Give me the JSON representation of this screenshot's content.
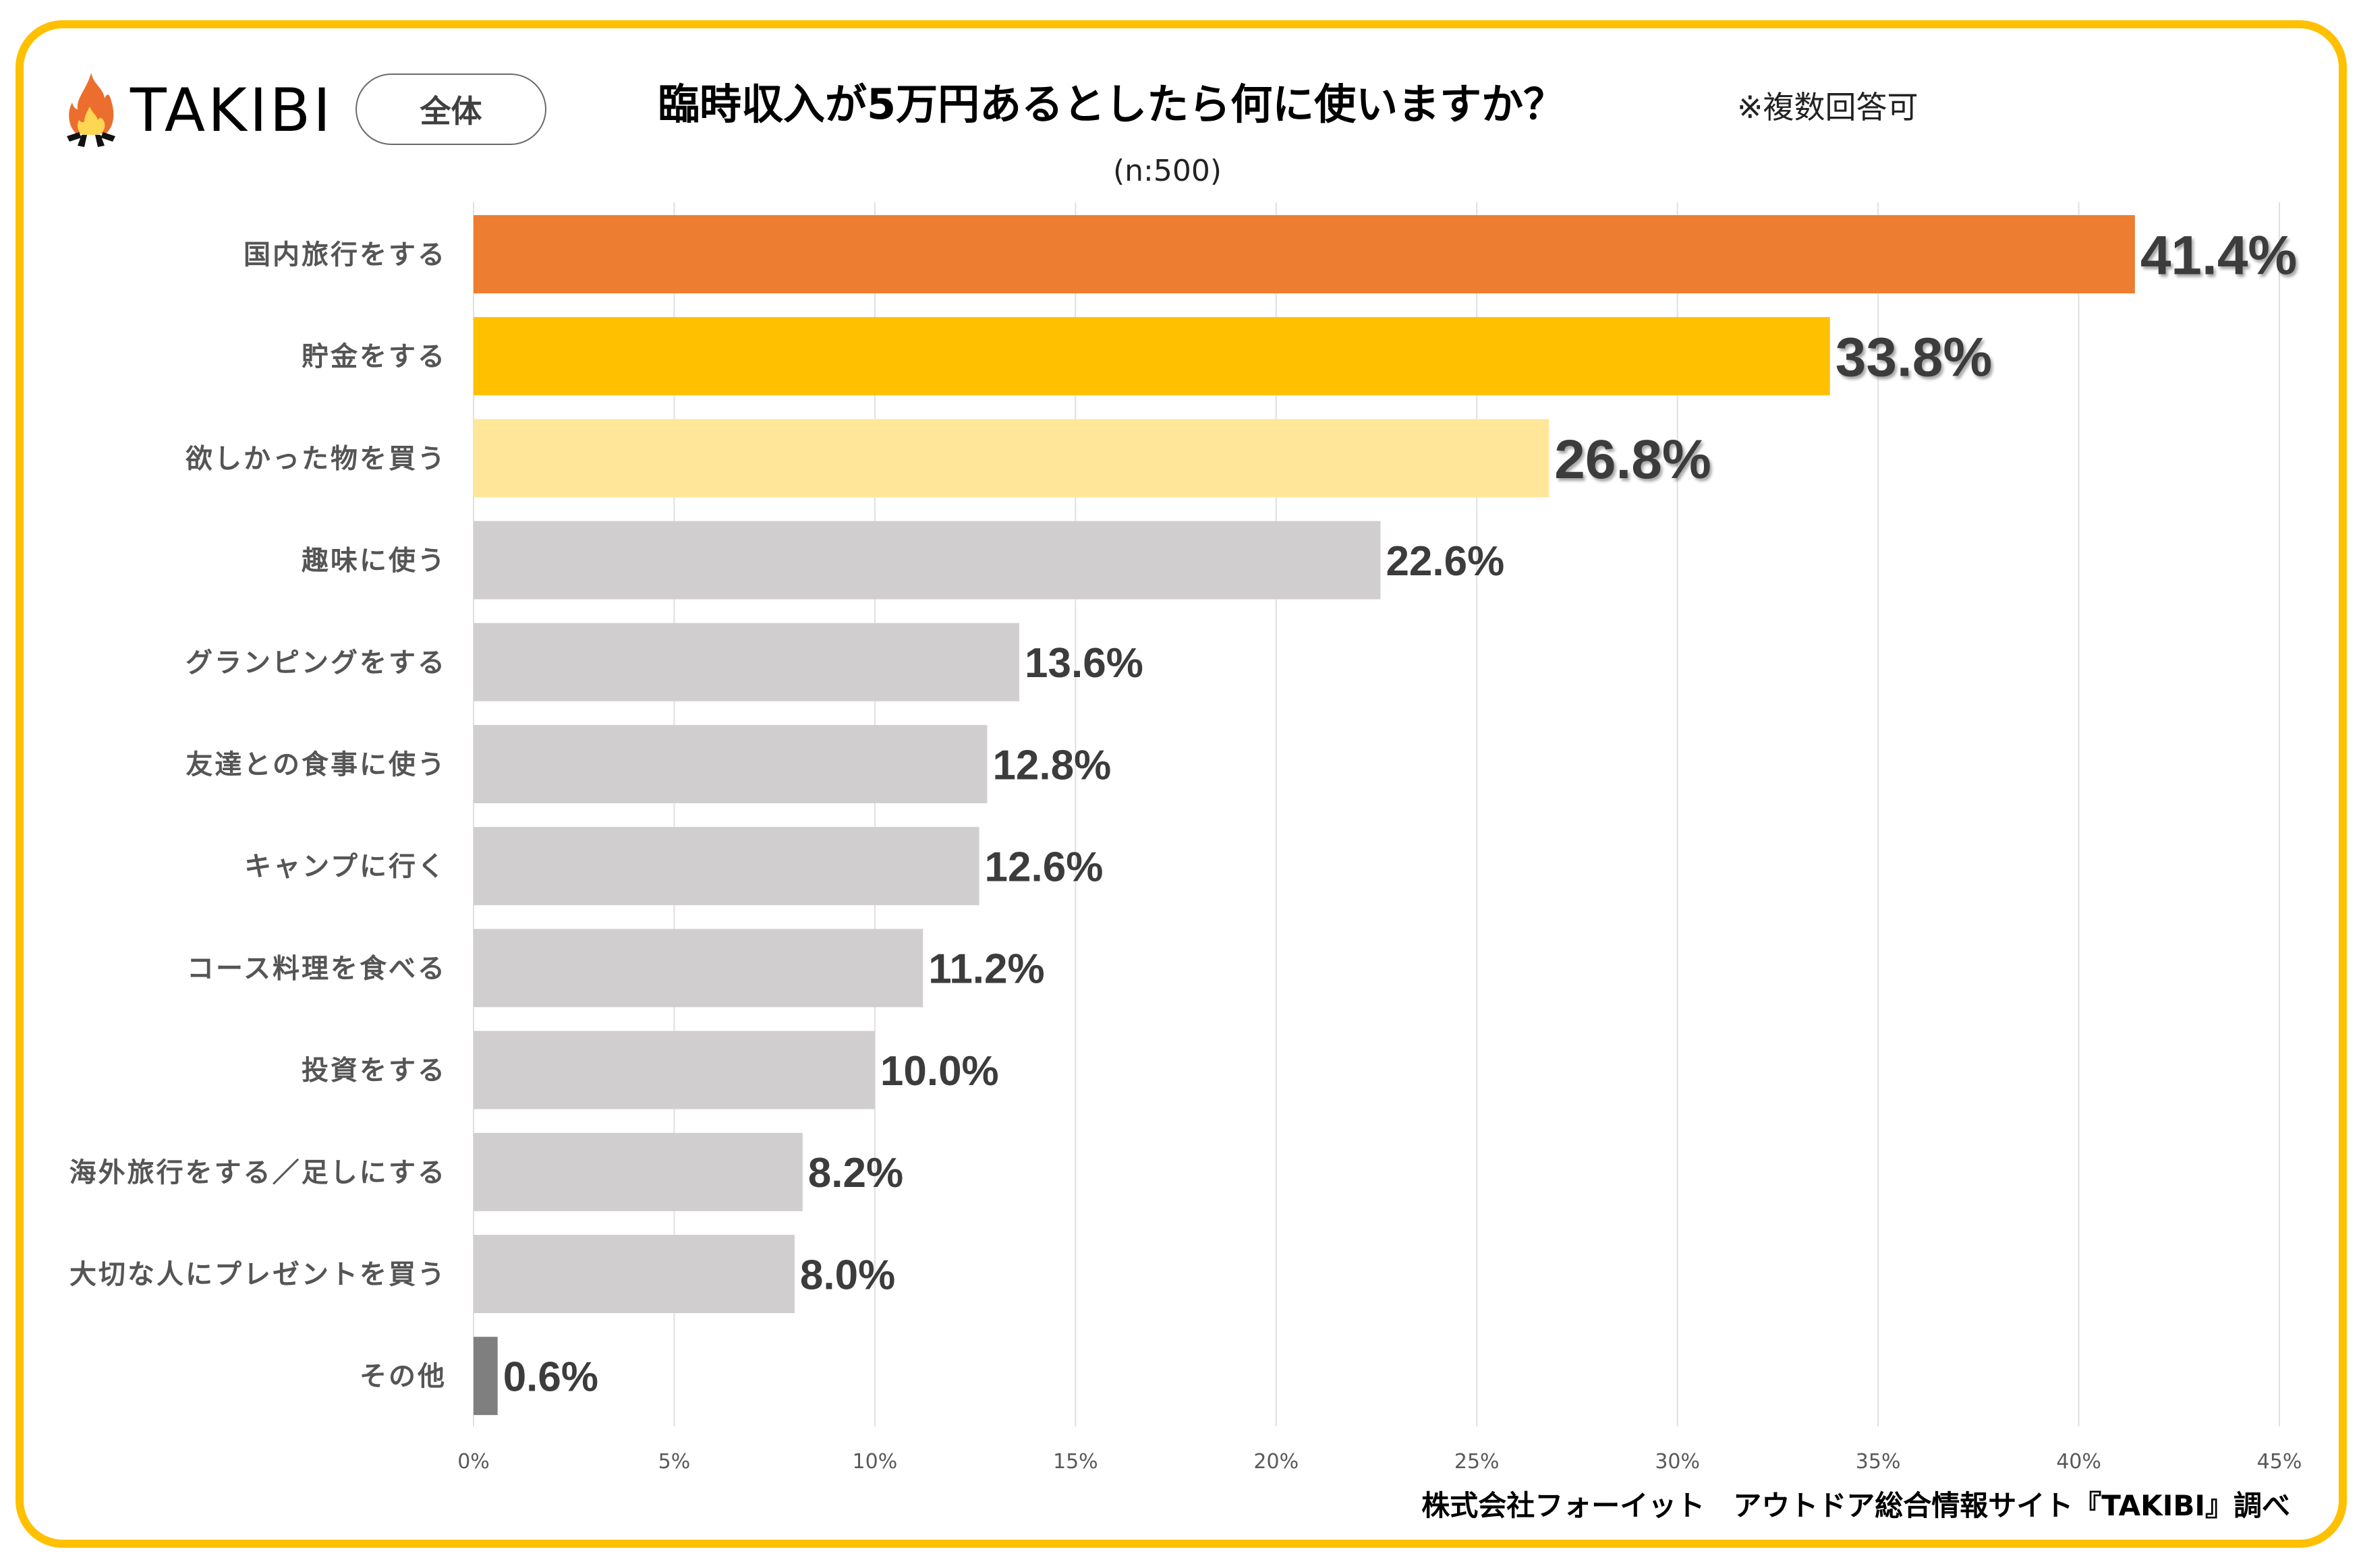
{
  "brand": {
    "name": "TAKIBI",
    "icon": "campfire-icon"
  },
  "filter": {
    "label": "全体"
  },
  "header": {
    "title": "臨時収入が5万円あるとしたら何に使いますか？",
    "note": "※複数回答可",
    "sample": "(n:500)"
  },
  "footer": {
    "credit": "株式会社フォーイット　アウトドア総合情報サイト『TAKIBI』調べ"
  },
  "colors": {
    "border": "#FFC000",
    "rank1": "#ED7D31",
    "rank2": "#FFC000",
    "rank3": "#FFE699",
    "other": "#D0CECE",
    "misc": "#7F7F7F",
    "rank1_label": "#ED7D31",
    "label": "#3C3C3C"
  },
  "chart_data": {
    "type": "bar",
    "orientation": "horizontal",
    "title": "臨時収入が5万円あるとしたら何に使いますか？",
    "subtitle": "(n:500)",
    "xlabel": "",
    "ylabel": "",
    "unit": "%",
    "xlim": [
      0,
      45
    ],
    "xticks": [
      0,
      5,
      10,
      15,
      20,
      25,
      30,
      35,
      40,
      45
    ],
    "xtick_labels": [
      "0%",
      "5%",
      "10%",
      "15%",
      "20%",
      "25%",
      "30%",
      "35%",
      "40%",
      "45%"
    ],
    "grid": "vertical",
    "legend": "none",
    "categories": [
      "国内旅行をする",
      "貯金をする",
      "欲しかった物を買う",
      "趣味に使う",
      "グランピングをする",
      "友達との食事に使う",
      "キャンプに行く",
      "コース料理を食べる",
      "投資をする",
      "海外旅行をする／足しにする",
      "大切な人にプレゼントを買う",
      "その他"
    ],
    "values": [
      41.4,
      33.8,
      26.8,
      22.6,
      13.6,
      12.8,
      12.6,
      11.2,
      10.0,
      8.2,
      8.0,
      0.6
    ],
    "value_labels": [
      "41.4%",
      "33.8%",
      "26.8%",
      "22.6%",
      "13.6%",
      "12.8%",
      "12.6%",
      "11.2%",
      "10.0%",
      "8.2%",
      "8.0%",
      "0.6%"
    ],
    "bar_colors": [
      "#ED7D31",
      "#FFC000",
      "#FFE699",
      "#D0CECE",
      "#D0CECE",
      "#D0CECE",
      "#D0CECE",
      "#D0CECE",
      "#D0CECE",
      "#D0CECE",
      "#D0CECE",
      "#7F7F7F"
    ]
  }
}
